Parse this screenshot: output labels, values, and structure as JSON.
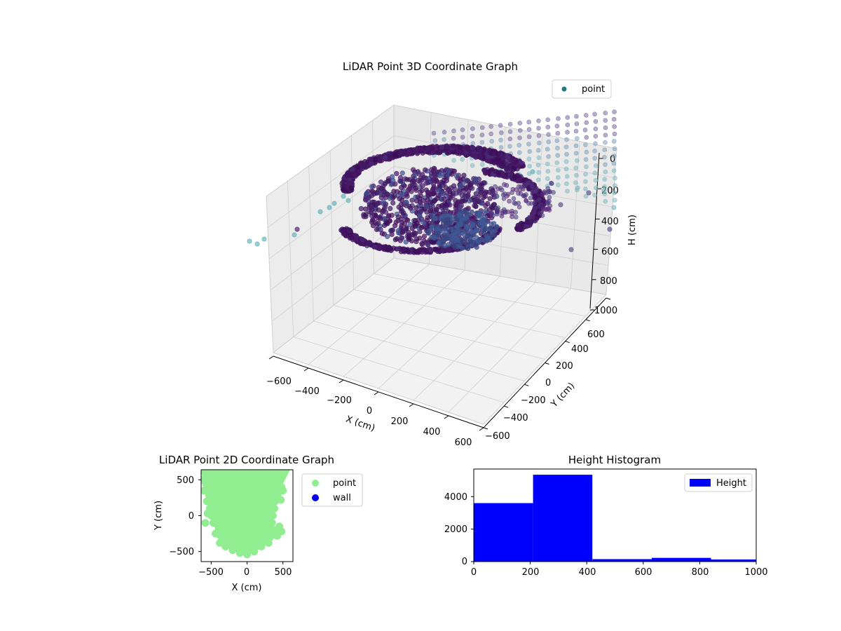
{
  "colors": {
    "point_3d_legend": "#1f7a86",
    "point_2d": "#90ee90",
    "wall_2d": "#0000ee",
    "histogram": "#0000ff",
    "pane": "#f2f2f2",
    "grid": "#d0d0d0"
  },
  "chart_data": [
    {
      "type": "scatter",
      "title": "LiDAR Point 3D Coordinate Graph",
      "xlabel": "X (cm)",
      "ylabel": "Y (cm)",
      "zlabel": "H (cm)",
      "x_ticks": [
        "−600",
        "−400",
        "−200",
        "0",
        "200",
        "400",
        "600"
      ],
      "y_ticks": [
        "−600",
        "−400",
        "−200",
        "0",
        "200",
        "400",
        "600"
      ],
      "z_ticks": [
        "0",
        "200",
        "400",
        "600",
        "800",
        "1000"
      ],
      "xlim": [
        -600,
        600
      ],
      "ylim": [
        -600,
        600
      ],
      "zlim": [
        0,
        1000
      ],
      "z_inverted": true,
      "legend": [
        {
          "name": "point"
        }
      ],
      "legend_position": "top-right",
      "grid": true
    },
    {
      "type": "scatter",
      "title": "LiDAR Point 2D Coordinate Graph",
      "xlabel": "X (cm)",
      "ylabel": "Y (cm)",
      "x_ticks": [
        "−500",
        "0",
        "500"
      ],
      "y_ticks": [
        "−500",
        "0",
        "500"
      ],
      "xlim": [
        -640,
        640
      ],
      "ylim": [
        -640,
        640
      ],
      "legend": [
        {
          "name": "point"
        },
        {
          "name": "wall"
        }
      ],
      "legend_position": "outside-right",
      "series": [
        {
          "name": "point",
          "description_points": [
            [
              -590,
              600
            ],
            [
              -500,
              560
            ],
            [
              -400,
              590
            ],
            [
              -300,
              620
            ],
            [
              -200,
              600
            ],
            [
              -100,
              630
            ],
            [
              0,
              620
            ],
            [
              100,
              600
            ],
            [
              200,
              630
            ],
            [
              300,
              600
            ],
            [
              400,
              560
            ],
            [
              480,
              400
            ],
            [
              430,
              300
            ],
            [
              390,
              200
            ],
            [
              380,
              100
            ],
            [
              360,
              0
            ],
            [
              350,
              -100
            ],
            [
              380,
              -200
            ],
            [
              420,
              -280
            ],
            [
              300,
              -380
            ],
            [
              200,
              -430
            ],
            [
              100,
              -500
            ],
            [
              0,
              -540
            ],
            [
              -100,
              -520
            ],
            [
              -200,
              -480
            ],
            [
              -300,
              -430
            ],
            [
              -380,
              -380
            ],
            [
              -440,
              -250
            ],
            [
              -470,
              -100
            ],
            [
              -500,
              0
            ],
            [
              -520,
              100
            ],
            [
              -560,
              200
            ],
            [
              -600,
              350
            ],
            [
              -620,
              500
            ],
            [
              -200,
              300
            ],
            [
              0,
              300
            ],
            [
              200,
              300
            ],
            [
              -200,
              0
            ],
            [
              0,
              0
            ],
            [
              200,
              0
            ],
            [
              -200,
              -250
            ],
            [
              0,
              -250
            ],
            [
              200,
              -250
            ],
            [
              -350,
              150
            ],
            [
              300,
              150
            ],
            [
              -100,
              -400
            ],
            [
              150,
              -420
            ],
            [
              -300,
              -200
            ],
            [
              280,
              -150
            ],
            [
              -500,
              450
            ],
            [
              500,
              350
            ],
            [
              470,
              220
            ],
            [
              450,
              -150
            ],
            [
              480,
              -220
            ],
            [
              -580,
              -100
            ],
            [
              -550,
              30
            ]
          ]
        },
        {
          "name": "wall",
          "description_points": []
        }
      ]
    },
    {
      "type": "bar",
      "title": "Height Histogram",
      "x_ticks": [
        "0",
        "200",
        "400",
        "600",
        "800",
        "1000"
      ],
      "y_ticks": [
        "0",
        "2000",
        "4000"
      ],
      "xlim": [
        0,
        1000
      ],
      "ylim": [
        0,
        5700
      ],
      "legend": [
        {
          "name": "Height"
        }
      ],
      "legend_position": "top-right",
      "bins": [
        [
          0,
          210
        ],
        [
          210,
          420
        ],
        [
          420,
          630
        ],
        [
          630,
          840
        ],
        [
          840,
          1000
        ]
      ],
      "values": [
        3600,
        5350,
        150,
        230,
        130
      ]
    }
  ]
}
